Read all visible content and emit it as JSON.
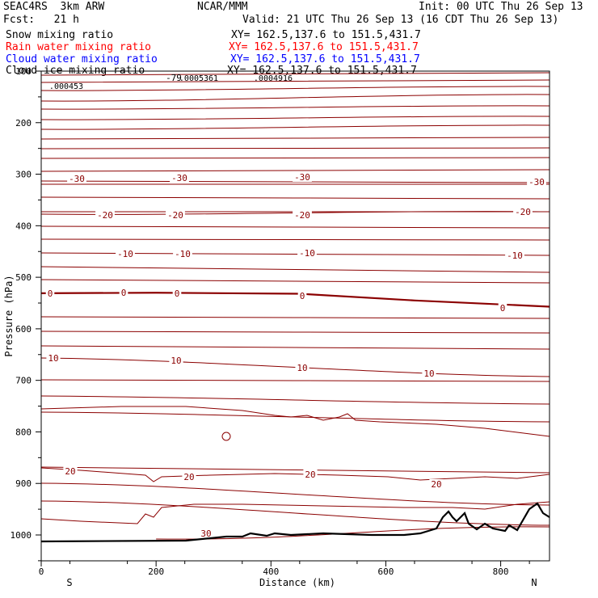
{
  "header": {
    "model": "SEAC4RS  3km ARW",
    "fcst": "Fcst:   21 h",
    "org": "NCAR/MMM",
    "init": "Init: 00 UTC Thu 26 Sep 13",
    "valid": "Valid: 21 UTC Thu 26 Sep 13 (16 CDT Thu 26 Sep 13)"
  },
  "fields": [
    {
      "name": "Snow mixing ratio",
      "xy": "XY= 162.5,137.6 to 151.5,431.7",
      "color": "#000000"
    },
    {
      "name": "Rain water mixing ratio",
      "xy": "XY= 162.5,137.6 to 151.5,431.7",
      "color": "#ff0000"
    },
    {
      "name": "Cloud water mixing ratio",
      "xy": "XY= 162.5,137.6 to 151.5,431.7",
      "color": "#0000ff"
    },
    {
      "name": "Cloud ice mixing ratio",
      "xy": "XY= 162.5,137.6 to 151.5,431.7",
      "color": "#000000"
    }
  ],
  "chart_data": {
    "type": "line",
    "title": "",
    "xlabel": "Distance (km)",
    "ylabel": "Pressure (hPa)",
    "xlim": [
      0,
      885
    ],
    "ylim": [
      1050,
      100
    ],
    "xticks": [
      "0",
      "200",
      "400",
      "600",
      "800"
    ],
    "yticks": [
      "100",
      "200",
      "300",
      "400",
      "500",
      "600",
      "700",
      "800",
      "900",
      "1000"
    ],
    "x_end_labels": {
      "left": "S",
      "right": "N"
    },
    "ice_labels": [
      "-79",
      ".000453",
      ".0005361",
      ".0004916"
    ],
    "temperature_contour_labels": [
      "-30",
      "-20",
      "-10",
      "0",
      "10",
      "20",
      "30"
    ],
    "temperature_contours": [
      {
        "label": "-30",
        "x": [
          0,
          885
        ],
        "y": [
          310,
          316
        ]
      },
      {
        "label": "-20",
        "x": [
          0,
          885
        ],
        "y": [
          375,
          368
        ]
      },
      {
        "label": "-10",
        "x": [
          0,
          885
        ],
        "y": [
          450,
          452
        ]
      },
      {
        "label": "0",
        "x": [
          0,
          200,
          450,
          650,
          885
        ],
        "y": [
          531,
          530,
          532,
          545,
          557
        ]
      },
      {
        "label": "10",
        "x": [
          0,
          885
        ],
        "y": [
          650,
          683
        ]
      },
      {
        "label": "20",
        "x": [
          0,
          885
        ],
        "y": [
          875,
          882
        ]
      },
      {
        "label": "30",
        "x": [
          200,
          885
        ],
        "y": [
          1008,
          985
        ]
      }
    ],
    "terrain": {
      "x": [
        0,
        250,
        330,
        400,
        600,
        670,
        700,
        720,
        760,
        800,
        850,
        870,
        885
      ],
      "y": [
        1011,
        1010,
        1000,
        1003,
        1001,
        1000,
        985,
        970,
        990,
        985,
        945,
        965,
        960
      ]
    }
  }
}
